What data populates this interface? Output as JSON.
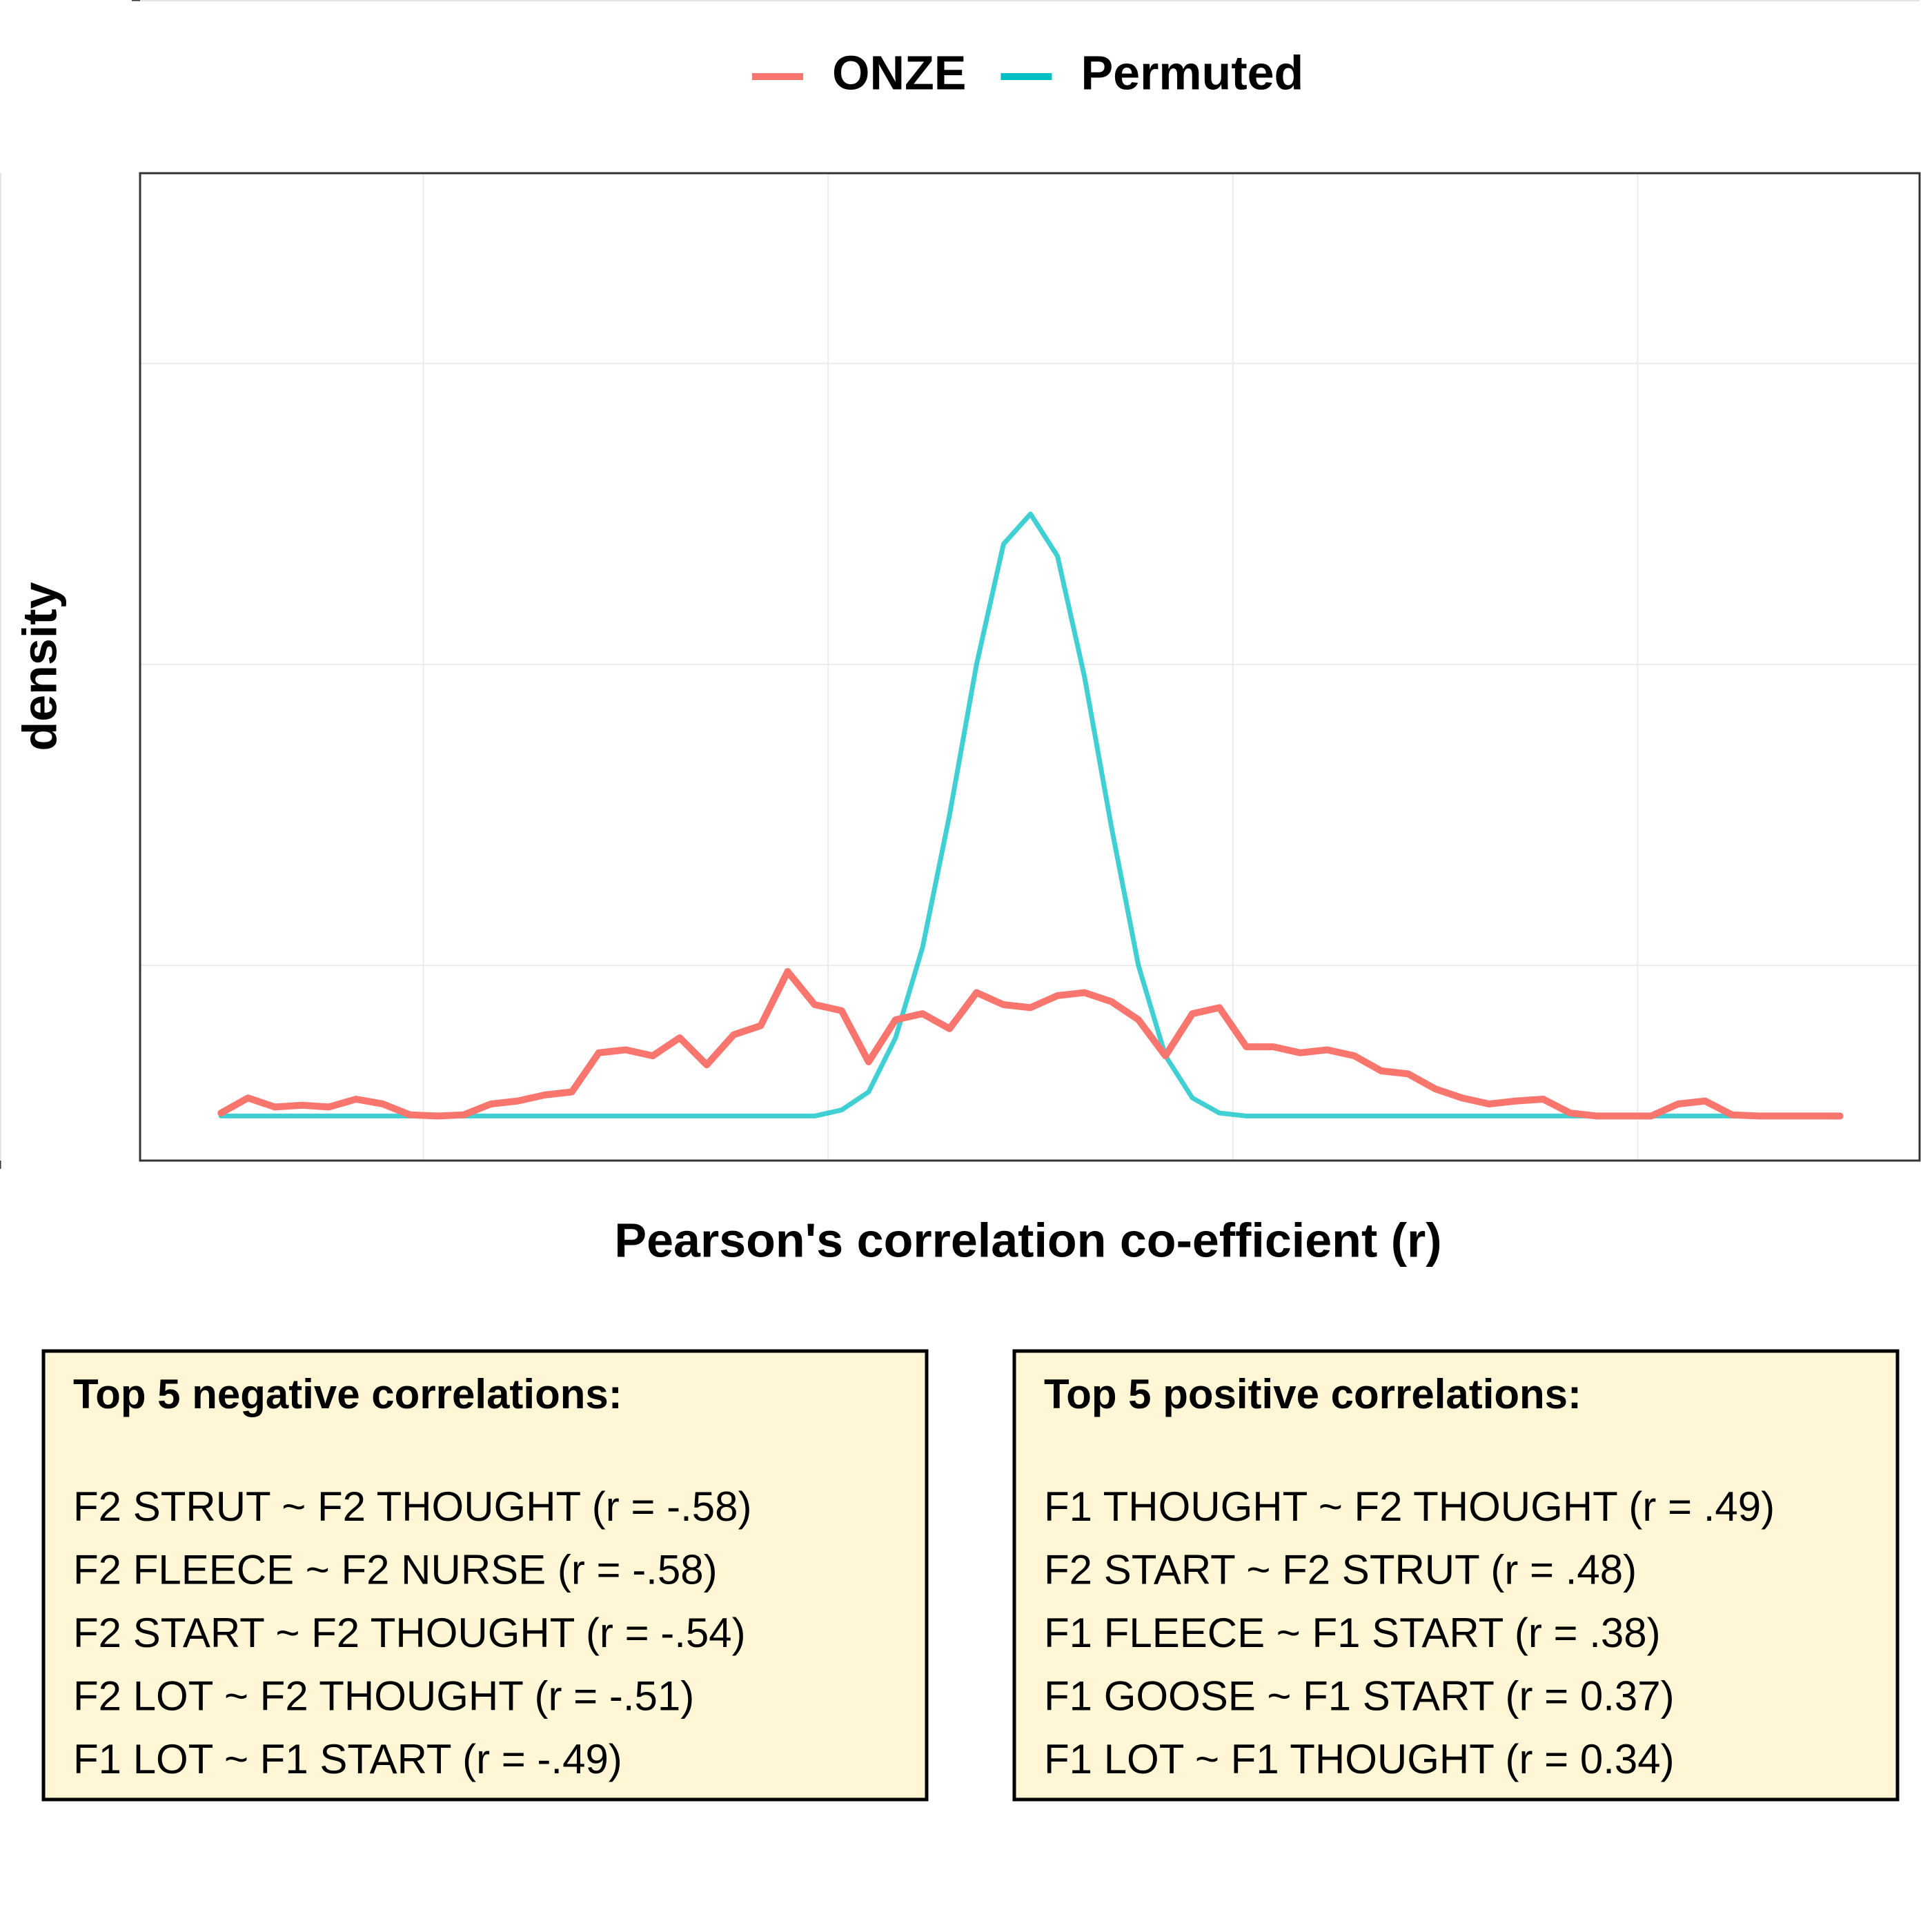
{
  "chart_data": {
    "type": "line",
    "xlabel": "Pearson's correlation co-efficient (r)",
    "ylabel": "density",
    "x": [
      -0.6,
      -0.58,
      -0.56,
      -0.54,
      -0.52,
      -0.5,
      -0.48,
      -0.46,
      -0.44,
      -0.42,
      -0.4,
      -0.38,
      -0.36,
      -0.34,
      -0.32,
      -0.3,
      -0.28,
      -0.26,
      -0.24,
      -0.22,
      -0.2,
      -0.18,
      -0.16,
      -0.14,
      -0.12,
      -0.1,
      -0.08,
      -0.06,
      -0.04,
      -0.02,
      0,
      0.02,
      0.04,
      0.06,
      0.08,
      0.1,
      0.12,
      0.14,
      0.16,
      0.18,
      0.2,
      0.22,
      0.24,
      0.26,
      0.28,
      0.3,
      0.32,
      0.34,
      0.36,
      0.38,
      0.4,
      0.42,
      0.44,
      0.46,
      0.48,
      0.5,
      0.52,
      0.54,
      0.56,
      0.58,
      0.6
    ],
    "series": [
      {
        "name": "ONZE",
        "color": "#F8766D",
        "values": [
          0.05,
          0.3,
          0.15,
          0.18,
          0.15,
          0.28,
          0.2,
          0.02,
          0,
          0.02,
          0.2,
          0.25,
          0.35,
          0.4,
          1.05,
          1.1,
          1.0,
          1.3,
          0.85,
          1.35,
          1.5,
          2.4,
          1.85,
          1.75,
          0.9,
          1.6,
          1.7,
          1.45,
          2.05,
          1.85,
          1.8,
          2.0,
          2.05,
          1.9,
          1.6,
          1.0,
          1.7,
          1.8,
          1.15,
          1.15,
          1.05,
          1.1,
          1.0,
          0.75,
          0.7,
          0.45,
          0.3,
          0.2,
          0.25,
          0.28,
          0.05,
          0,
          0,
          0,
          0.2,
          0.25,
          0.02,
          0,
          0,
          0,
          0
        ]
      },
      {
        "name": "Permuted",
        "color": "#00BFC4",
        "values": [
          0,
          0,
          0,
          0,
          0,
          0,
          0,
          0,
          0,
          0,
          0,
          0,
          0,
          0,
          0,
          0,
          0,
          0,
          0,
          0,
          0,
          0,
          0,
          0.1,
          0.4,
          1.3,
          2.8,
          5.0,
          7.5,
          9.5,
          10,
          9.3,
          7.3,
          4.8,
          2.5,
          1.0,
          0.3,
          0.05,
          0,
          0,
          0,
          0,
          0,
          0,
          0,
          0,
          0,
          0,
          0,
          0,
          0,
          0,
          0,
          0,
          0,
          0,
          0,
          0,
          0,
          0,
          0
        ]
      }
    ],
    "xlim": [
      -0.66,
      0.659
    ],
    "xticks": [
      -0.6,
      -0.3,
      {
        "value": 0,
        "label": "0.0"
      },
      0.3,
      0.6
    ],
    "ylim": [
      -0.74,
      15.66
    ],
    "yticks": [
      0,
      5,
      10,
      15
    ],
    "grid": true,
    "legend": "top",
    "annotations": [
      {
        "title": "Top 5 negative correlations:",
        "lines": [
          "F2 STRUT ~ F2 THOUGHT (r = -.58)",
          "F2 FLEECE ~ F2 NURSE (r = -.58)",
          "F2 START ~ F2 THOUGHT (r = -.54)",
          "F2 LOT ~ F2 THOUGHT (r = -.51)",
          "F1 LOT ~ F1 START (r = -.49)"
        ]
      },
      {
        "title": "Top 5 positive correlations:",
        "lines": [
          "F1 THOUGHT ~ F2 THOUGHT (r = .49)",
          "F2 START ~ F2 STRUT (r = .48)",
          "F1 FLEECE ~ F1 START (r = .38)",
          "F1 GOOSE ~ F1 START (r = 0.37)",
          "F1 LOT ~ F1 THOUGHT (r = 0.34)"
        ]
      }
    ]
  }
}
